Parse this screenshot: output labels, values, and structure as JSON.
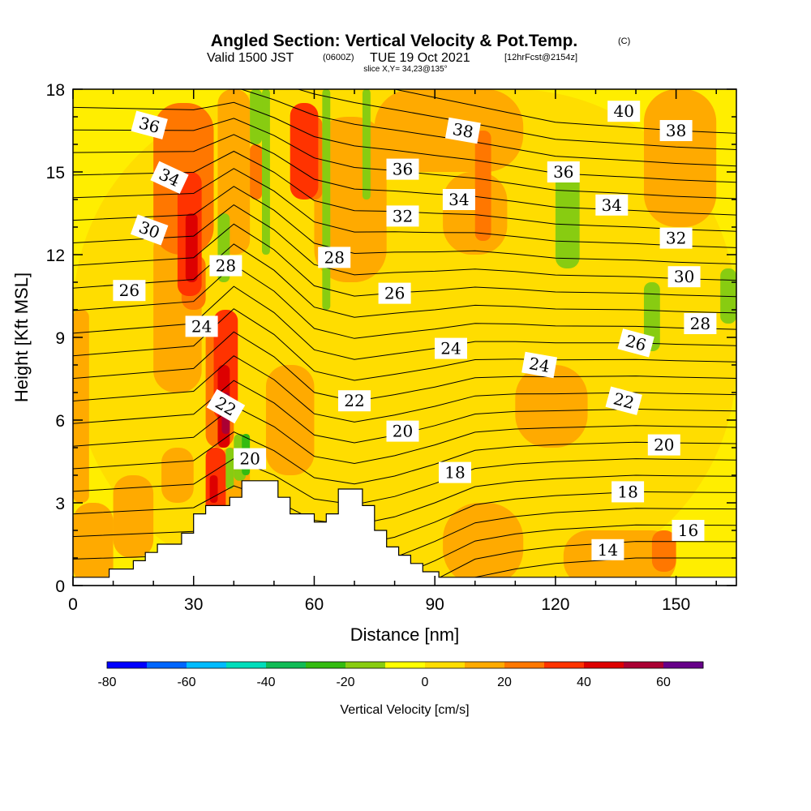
{
  "chart_data": {
    "type": "heatmap",
    "title": "Angled Section: Vertical Velocity & Pot.Temp.",
    "title_suffix": "(C)",
    "subtitle": {
      "valid": "Valid 1500 JST",
      "utc": "(0600Z)",
      "date": "TUE 19 Oct 2021",
      "forecast": "[12hrFcst@2154z]"
    },
    "slice_label": "slice X,Y= 34,23@135°",
    "xlabel": "Distance [nm]",
    "ylabel": "Height [Kft MSL]",
    "xlim": [
      0,
      165
    ],
    "ylim": [
      0,
      18
    ],
    "x_ticks": [
      0,
      30,
      60,
      90,
      120,
      150
    ],
    "y_ticks": [
      0,
      3,
      6,
      9,
      12,
      15,
      18
    ],
    "grid": false,
    "colorbar": {
      "title": "Vertical Velocity [cm/s]",
      "placement": "bottom",
      "bins": [
        -80,
        -70,
        -60,
        -50,
        -40,
        -30,
        -20,
        -10,
        0,
        10,
        20,
        30,
        40,
        50,
        60,
        70
      ],
      "tick_labels": [
        -80,
        -60,
        -40,
        -20,
        0,
        20,
        40,
        60
      ],
      "colors": [
        "#0000ff",
        "#0066ff",
        "#00bbff",
        "#00ddbb",
        "#11bb55",
        "#33bb11",
        "#88cc11",
        "#ffff00",
        "#ffdd00",
        "#ffaa00",
        "#ff7700",
        "#ff3300",
        "#dd0000",
        "#aa0033",
        "#660088"
      ]
    },
    "background_color": "#ffee00",
    "terrain_color": "#ffffff",
    "velocity_cells": [
      {
        "x0": 0,
        "x1": 165,
        "y0": 0,
        "y1": 18,
        "v": 5
      },
      {
        "x0": 0,
        "x1": 10,
        "y0": 0,
        "y1": 3,
        "v": 12
      },
      {
        "x0": 0,
        "x1": 4,
        "y0": 3,
        "y1": 10,
        "v": 12
      },
      {
        "x0": 10,
        "x1": 20,
        "y0": 1,
        "y1": 4,
        "v": 12
      },
      {
        "x0": 20,
        "x1": 32,
        "y0": 7,
        "y1": 13,
        "v": 12
      },
      {
        "x0": 36,
        "x1": 44,
        "y0": 12,
        "y1": 18,
        "v": 12
      },
      {
        "x0": 48,
        "x1": 60,
        "y0": 4,
        "y1": 8,
        "v": 12
      },
      {
        "x0": 60,
        "x1": 78,
        "y0": 11,
        "y1": 17,
        "v": 12
      },
      {
        "x0": 75,
        "x1": 112,
        "y0": 15,
        "y1": 18,
        "v": 12
      },
      {
        "x0": 92,
        "x1": 108,
        "y0": 12,
        "y1": 15,
        "v": 12
      },
      {
        "x0": 92,
        "x1": 112,
        "y0": 0,
        "y1": 3,
        "v": 12
      },
      {
        "x0": 110,
        "x1": 128,
        "y0": 5,
        "y1": 8,
        "v": 12
      },
      {
        "x0": 122,
        "x1": 150,
        "y0": 0,
        "y1": 2,
        "v": 12
      },
      {
        "x0": 142,
        "x1": 160,
        "y0": 13,
        "y1": 18,
        "v": 12
      },
      {
        "x0": 22,
        "x1": 30,
        "y0": 3,
        "y1": 5,
        "v": 12
      },
      {
        "x0": 36,
        "x1": 44,
        "y0": 0,
        "y1": 5,
        "v": 12
      },
      {
        "x0": 20,
        "x1": 35,
        "y0": 12,
        "y1": 17.5,
        "v": 22
      },
      {
        "x0": 27,
        "x1": 33,
        "y0": 10,
        "y1": 12,
        "v": 22
      },
      {
        "x0": 33,
        "x1": 40,
        "y0": 5,
        "y1": 9.5,
        "v": 22
      },
      {
        "x0": 44,
        "x1": 47,
        "y0": 14,
        "y1": 16,
        "v": 22
      },
      {
        "x0": 58,
        "x1": 62,
        "y0": 14,
        "y1": 17,
        "v": 22
      },
      {
        "x0": 100,
        "x1": 104,
        "y0": 12.5,
        "y1": 16.5,
        "v": 22
      },
      {
        "x0": 144,
        "x1": 150,
        "y0": 0.5,
        "y1": 2,
        "v": 22
      },
      {
        "x0": 26,
        "x1": 32,
        "y0": 10.5,
        "y1": 15,
        "v": 32
      },
      {
        "x0": 35,
        "x1": 41,
        "y0": 6,
        "y1": 10,
        "v": 32
      },
      {
        "x0": 33,
        "x1": 38,
        "y0": 2.5,
        "y1": 5,
        "v": 32
      },
      {
        "x0": 54,
        "x1": 61,
        "y0": 14,
        "y1": 17.5,
        "v": 32
      },
      {
        "x0": 28,
        "x1": 31,
        "y0": 11,
        "y1": 13.5,
        "v": 42
      },
      {
        "x0": 36,
        "x1": 39,
        "y0": 5,
        "y1": 8,
        "v": 42
      },
      {
        "x0": 34,
        "x1": 36,
        "y0": 3,
        "y1": 4,
        "v": 42
      },
      {
        "x0": 37,
        "x1": 39,
        "y0": 5.5,
        "y1": 7,
        "v": 52
      },
      {
        "x0": 38,
        "x1": 40,
        "y0": 3.5,
        "y1": 5,
        "v": -15
      },
      {
        "x0": 40,
        "x1": 43,
        "y0": 3.8,
        "y1": 5.5,
        "v": -15
      },
      {
        "x0": 42,
        "x1": 44,
        "y0": 4,
        "y1": 5.5,
        "v": -25
      },
      {
        "x0": 36,
        "x1": 39,
        "y0": 11,
        "y1": 13.5,
        "v": -15
      },
      {
        "x0": 47,
        "x1": 49,
        "y0": 12,
        "y1": 18,
        "v": -15
      },
      {
        "x0": 44,
        "x1": 47,
        "y0": 16,
        "y1": 18,
        "v": -15
      },
      {
        "x0": 62,
        "x1": 64,
        "y0": 10,
        "y1": 18,
        "v": -15
      },
      {
        "x0": 72,
        "x1": 74,
        "y0": 14,
        "y1": 18,
        "v": -15
      },
      {
        "x0": 120,
        "x1": 126,
        "y0": 11.5,
        "y1": 15,
        "v": -15
      },
      {
        "x0": 142,
        "x1": 146,
        "y0": 8.5,
        "y1": 11,
        "v": -15
      },
      {
        "x0": 161,
        "x1": 165,
        "y0": 9.5,
        "y1": 11.5,
        "v": -15
      }
    ],
    "terrain": [
      {
        "x": 0,
        "y": 0.3
      },
      {
        "x": 9,
        "y": 0.3
      },
      {
        "x": 9,
        "y": 0.6
      },
      {
        "x": 15,
        "y": 0.6
      },
      {
        "x": 15,
        "y": 0.9
      },
      {
        "x": 18,
        "y": 0.9
      },
      {
        "x": 18,
        "y": 1.2
      },
      {
        "x": 21,
        "y": 1.2
      },
      {
        "x": 21,
        "y": 1.5
      },
      {
        "x": 27,
        "y": 1.5
      },
      {
        "x": 27,
        "y": 1.9
      },
      {
        "x": 30,
        "y": 1.9
      },
      {
        "x": 30,
        "y": 2.6
      },
      {
        "x": 33,
        "y": 2.6
      },
      {
        "x": 33,
        "y": 2.9
      },
      {
        "x": 39,
        "y": 2.9
      },
      {
        "x": 39,
        "y": 3.2
      },
      {
        "x": 42,
        "y": 3.2
      },
      {
        "x": 42,
        "y": 3.8
      },
      {
        "x": 51,
        "y": 3.8
      },
      {
        "x": 51,
        "y": 3.2
      },
      {
        "x": 54,
        "y": 3.2
      },
      {
        "x": 54,
        "y": 2.6
      },
      {
        "x": 60,
        "y": 2.6
      },
      {
        "x": 60,
        "y": 2.3
      },
      {
        "x": 63,
        "y": 2.3
      },
      {
        "x": 63,
        "y": 2.6
      },
      {
        "x": 66,
        "y": 2.6
      },
      {
        "x": 66,
        "y": 3.5
      },
      {
        "x": 72,
        "y": 3.5
      },
      {
        "x": 72,
        "y": 2.9
      },
      {
        "x": 75,
        "y": 2.9
      },
      {
        "x": 75,
        "y": 2.0
      },
      {
        "x": 78,
        "y": 2.0
      },
      {
        "x": 78,
        "y": 1.4
      },
      {
        "x": 81,
        "y": 1.4
      },
      {
        "x": 81,
        "y": 1.1
      },
      {
        "x": 84,
        "y": 1.1
      },
      {
        "x": 84,
        "y": 0.8
      },
      {
        "x": 87,
        "y": 0.8
      },
      {
        "x": 87,
        "y": 0.5
      },
      {
        "x": 91,
        "y": 0.5
      },
      {
        "x": 91,
        "y": 0.3
      },
      {
        "x": 165,
        "y": 0.3
      }
    ],
    "isotherm_levels": [
      14,
      15,
      16,
      17,
      18,
      19,
      20,
      21,
      22,
      23,
      24,
      25,
      26,
      27,
      28,
      29,
      30,
      31,
      32,
      33,
      34,
      35,
      36,
      37,
      38,
      39,
      40
    ],
    "isotherm_height": {
      "x": [
        0,
        30,
        40,
        50,
        60,
        70,
        80,
        90,
        100,
        110,
        120,
        130,
        140,
        150,
        165
      ],
      "t14": [
        -1.5,
        -1.5,
        -1.5,
        -1.5,
        -1.5,
        -1.5,
        -1.2,
        -0.5,
        0.3,
        0.6,
        0.8,
        0.9,
        1.0,
        1.0,
        1.0
      ],
      "t40": [
        19.8,
        19.5,
        19.2,
        18.9,
        18.6,
        18.3,
        18.0,
        17.7,
        17.4,
        17.1,
        16.8,
        16.7,
        16.6,
        16.5,
        16.4
      ],
      "bump": [
        0,
        0.5,
        2.0,
        1.2,
        0,
        -0.2,
        0,
        0,
        0,
        0,
        0,
        0,
        0,
        0,
        0
      ]
    },
    "contour_labels": [
      {
        "text": "36",
        "x": 19,
        "y": 16.7,
        "rot": 15
      },
      {
        "text": "34",
        "x": 24,
        "y": 14.8,
        "rot": 25
      },
      {
        "text": "30",
        "x": 19,
        "y": 12.9,
        "rot": 20
      },
      {
        "text": "26",
        "x": 14,
        "y": 10.7,
        "rot": 0
      },
      {
        "text": "28",
        "x": 38,
        "y": 11.6,
        "rot": 0
      },
      {
        "text": "24",
        "x": 32,
        "y": 9.4,
        "rot": 0
      },
      {
        "text": "22",
        "x": 38,
        "y": 6.5,
        "rot": 30
      },
      {
        "text": "20",
        "x": 44,
        "y": 4.6,
        "rot": 0
      },
      {
        "text": "28",
        "x": 65,
        "y": 11.9,
        "rot": 0
      },
      {
        "text": "26",
        "x": 80,
        "y": 10.6,
        "rot": 0
      },
      {
        "text": "22",
        "x": 70,
        "y": 6.7,
        "rot": 0
      },
      {
        "text": "20",
        "x": 82,
        "y": 5.6,
        "rot": 0
      },
      {
        "text": "24",
        "x": 94,
        "y": 8.6,
        "rot": 0
      },
      {
        "text": "18",
        "x": 95,
        "y": 4.1,
        "rot": 0
      },
      {
        "text": "36",
        "x": 82,
        "y": 15.1,
        "rot": 0
      },
      {
        "text": "32",
        "x": 82,
        "y": 13.4,
        "rot": 0
      },
      {
        "text": "34",
        "x": 96,
        "y": 14.0,
        "rot": 0
      },
      {
        "text": "38",
        "x": 97,
        "y": 16.5,
        "rot": 10
      },
      {
        "text": "36",
        "x": 122,
        "y": 15.0,
        "rot": 0
      },
      {
        "text": "34",
        "x": 134,
        "y": 13.8,
        "rot": 0
      },
      {
        "text": "40",
        "x": 137,
        "y": 17.2,
        "rot": 0
      },
      {
        "text": "38",
        "x": 150,
        "y": 16.5,
        "rot": 0
      },
      {
        "text": "32",
        "x": 150,
        "y": 12.6,
        "rot": 0
      },
      {
        "text": "30",
        "x": 152,
        "y": 11.2,
        "rot": 0
      },
      {
        "text": "28",
        "x": 156,
        "y": 9.5,
        "rot": 0
      },
      {
        "text": "26",
        "x": 140,
        "y": 8.8,
        "rot": 15
      },
      {
        "text": "24",
        "x": 116,
        "y": 8.0,
        "rot": 10
      },
      {
        "text": "22",
        "x": 137,
        "y": 6.7,
        "rot": 15
      },
      {
        "text": "20",
        "x": 147,
        "y": 5.1,
        "rot": 0
      },
      {
        "text": "18",
        "x": 138,
        "y": 3.4,
        "rot": 0
      },
      {
        "text": "16",
        "x": 153,
        "y": 2.0,
        "rot": 0
      },
      {
        "text": "14",
        "x": 133,
        "y": 1.3,
        "rot": 0
      }
    ]
  }
}
